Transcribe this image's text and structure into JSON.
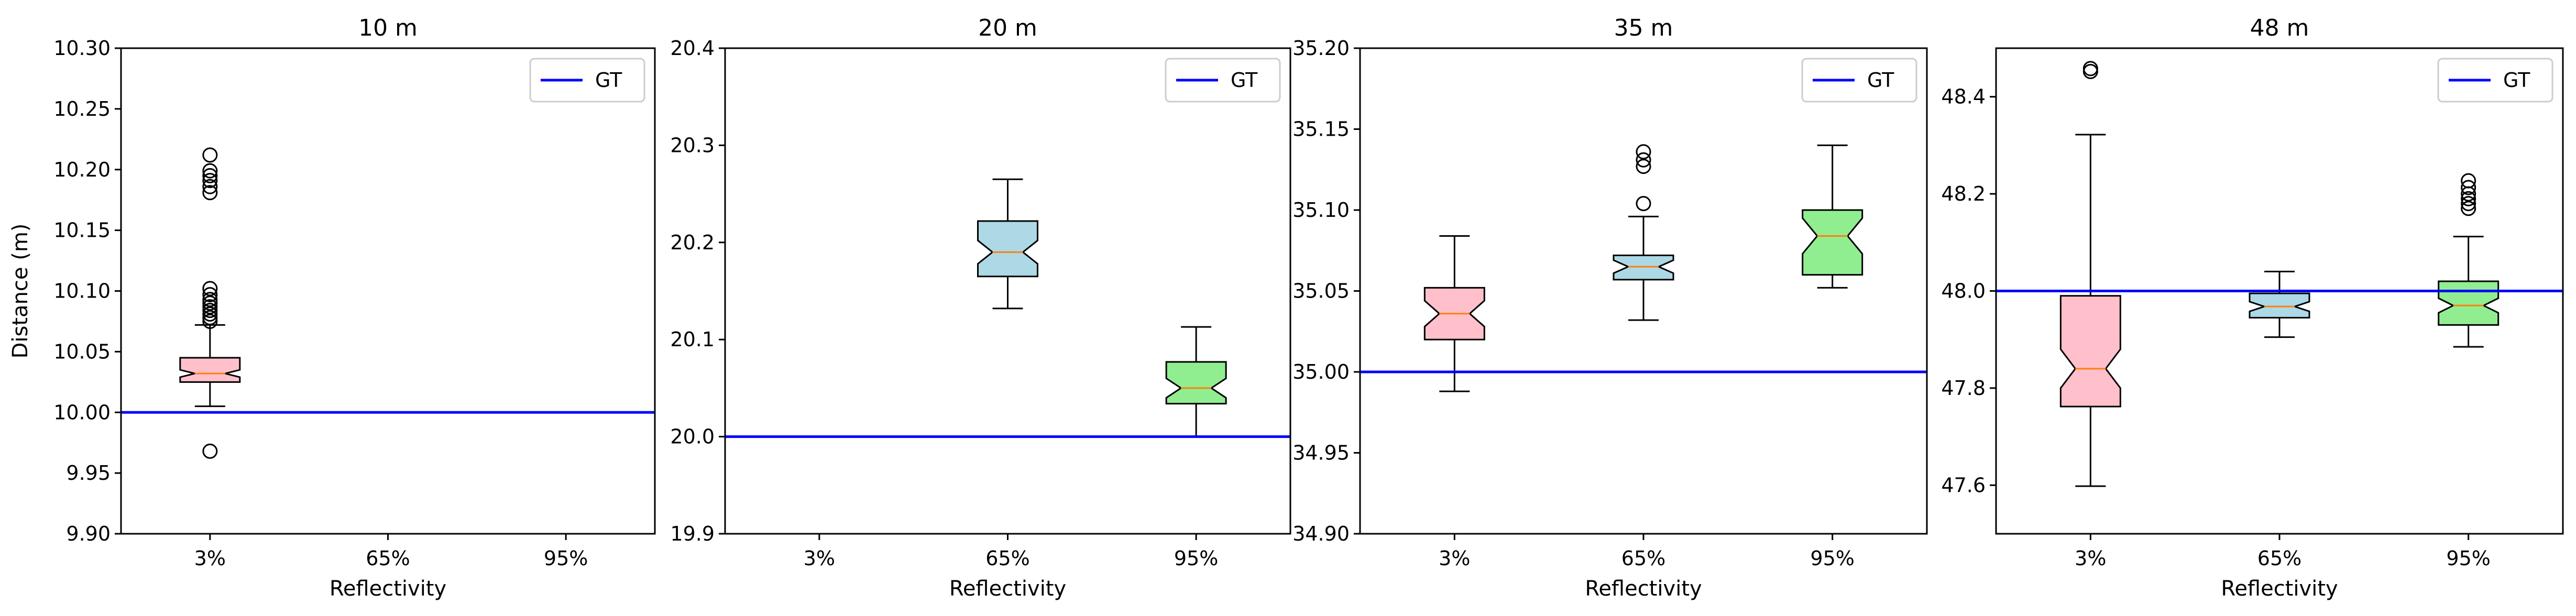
{
  "chart_data": [
    {
      "type": "box",
      "title": "10 m",
      "xlabel": "Reflectivity",
      "ylabel": "Distance (m)",
      "categories": [
        "3%",
        "65%",
        "95%"
      ],
      "ylim": [
        9.9,
        10.3
      ],
      "yticks": [
        "9.90",
        "9.95",
        "10.00",
        "10.05",
        "10.10",
        "10.15",
        "10.20",
        "10.25",
        "10.30"
      ],
      "gt": 10.0,
      "legend": {
        "label": "GT",
        "position": "top-right"
      },
      "boxes": [
        {
          "category": "3%",
          "color": "#ffc0cb",
          "q1": 10.025,
          "median": 10.032,
          "q3": 10.045,
          "whisker_low": 10.005,
          "whisker_high": 10.072,
          "notch_low": 10.029,
          "notch_high": 10.035,
          "outliers": [
            9.968,
            10.075,
            10.078,
            10.081,
            10.084,
            10.087,
            10.09,
            10.093,
            10.097,
            10.102,
            10.181,
            10.186,
            10.191,
            10.195,
            10.199,
            10.212
          ]
        },
        {
          "category": "65%",
          "color": "#add8e6",
          "q1": null
        },
        {
          "category": "95%",
          "color": "#90ee90",
          "q1": null
        }
      ]
    },
    {
      "type": "box",
      "title": "20 m",
      "xlabel": "Reflectivity",
      "ylabel": "",
      "categories": [
        "3%",
        "65%",
        "95%"
      ],
      "ylim": [
        19.9,
        20.4
      ],
      "yticks": [
        "19.9",
        "20.0",
        "20.1",
        "20.2",
        "20.3",
        "20.4"
      ],
      "gt": 20.0,
      "legend": {
        "label": "GT",
        "position": "top-right"
      },
      "boxes": [
        {
          "category": "3%",
          "color": "#ffc0cb",
          "q1": null
        },
        {
          "category": "65%",
          "color": "#add8e6",
          "q1": 20.165,
          "median": 20.19,
          "q3": 20.222,
          "whisker_low": 20.132,
          "whisker_high": 20.265,
          "notch_low": 20.178,
          "notch_high": 20.202,
          "outliers": []
        },
        {
          "category": "95%",
          "color": "#90ee90",
          "q1": 20.034,
          "median": 20.05,
          "q3": 20.077,
          "whisker_low": 20.0,
          "whisker_high": 20.113,
          "notch_low": 20.04,
          "notch_high": 20.06,
          "outliers": []
        }
      ]
    },
    {
      "type": "box",
      "title": "35 m",
      "xlabel": "Reflectivity",
      "ylabel": "",
      "categories": [
        "3%",
        "65%",
        "95%"
      ],
      "ylim": [
        34.9,
        35.2
      ],
      "yticks": [
        "34.90",
        "34.95",
        "35.00",
        "35.05",
        "35.10",
        "35.15",
        "35.20"
      ],
      "gt": 35.0,
      "legend": {
        "label": "GT",
        "position": "top-right"
      },
      "boxes": [
        {
          "category": "3%",
          "color": "#ffc0cb",
          "q1": 35.02,
          "median": 35.036,
          "q3": 35.052,
          "whisker_low": 34.988,
          "whisker_high": 35.084,
          "notch_low": 35.028,
          "notch_high": 35.044,
          "outliers": []
        },
        {
          "category": "65%",
          "color": "#add8e6",
          "q1": 35.057,
          "median": 35.065,
          "q3": 35.072,
          "whisker_low": 35.032,
          "whisker_high": 35.096,
          "notch_low": 35.061,
          "notch_high": 35.069,
          "outliers": [
            35.104,
            35.127,
            35.131,
            35.136
          ]
        },
        {
          "category": "95%",
          "color": "#90ee90",
          "q1": 35.06,
          "median": 35.084,
          "q3": 35.1,
          "whisker_low": 35.052,
          "whisker_high": 35.14,
          "notch_low": 35.073,
          "notch_high": 35.095,
          "outliers": []
        }
      ]
    },
    {
      "type": "box",
      "title": "48 m",
      "xlabel": "Reflectivity",
      "ylabel": "",
      "categories": [
        "3%",
        "65%",
        "95%"
      ],
      "ylim": [
        47.5,
        48.5
      ],
      "yticks": [
        "47.6",
        "47.8",
        "48.0",
        "48.2",
        "48.4"
      ],
      "gt": 48.0,
      "legend": {
        "label": "GT",
        "position": "top-right"
      },
      "boxes": [
        {
          "category": "3%",
          "color": "#ffc0cb",
          "q1": 47.762,
          "median": 47.84,
          "q3": 47.99,
          "whisker_low": 47.598,
          "whisker_high": 48.322,
          "notch_low": 47.8,
          "notch_high": 47.88,
          "outliers": [
            48.452,
            48.458
          ]
        },
        {
          "category": "65%",
          "color": "#add8e6",
          "q1": 47.945,
          "median": 47.968,
          "q3": 47.995,
          "whisker_low": 47.905,
          "whisker_high": 48.04,
          "notch_low": 47.958,
          "notch_high": 47.978,
          "outliers": []
        },
        {
          "category": "95%",
          "color": "#90ee90",
          "q1": 47.93,
          "median": 47.97,
          "q3": 48.02,
          "whisker_low": 47.885,
          "whisker_high": 48.112,
          "notch_low": 47.955,
          "notch_high": 47.985,
          "outliers": [
            48.17,
            48.18,
            48.19,
            48.2,
            48.213,
            48.227
          ]
        }
      ]
    }
  ],
  "colors": {
    "gt_line": "#0000ff",
    "median": "#ff7f0e",
    "axes": "#000000"
  }
}
